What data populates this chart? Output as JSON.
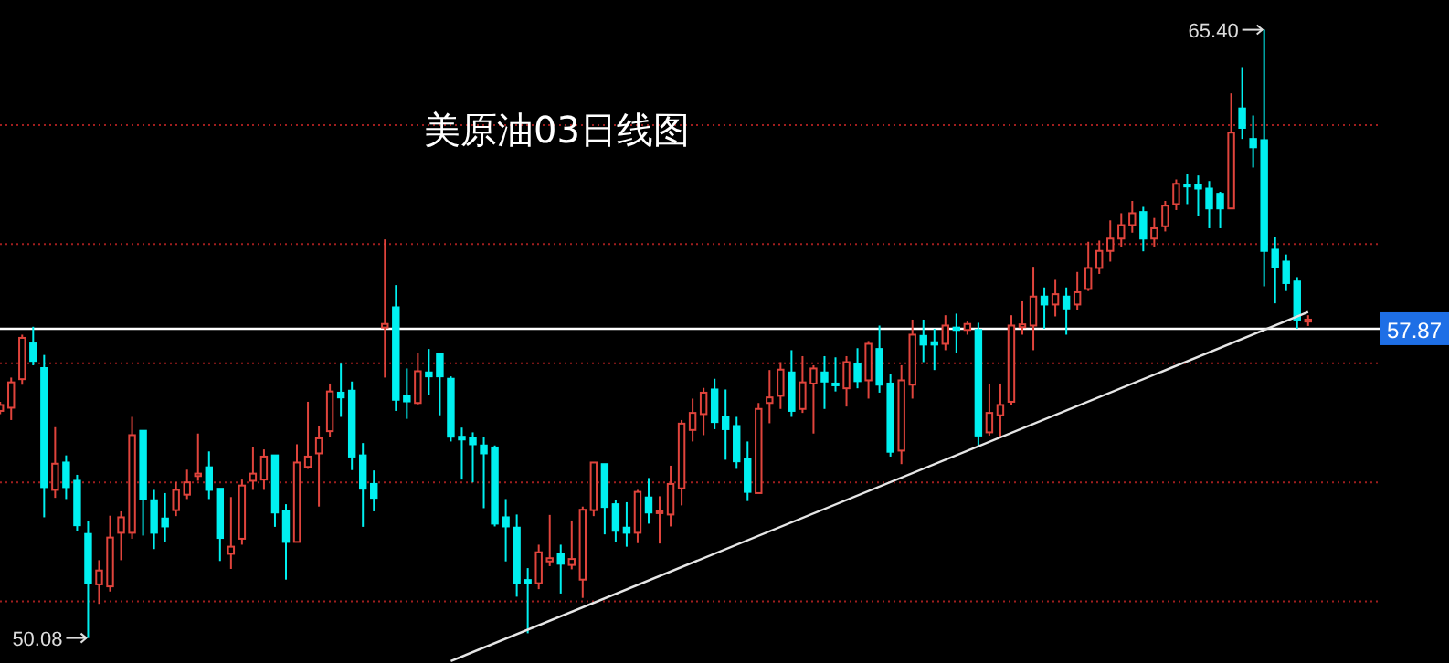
{
  "chart_data": {
    "type": "candlestick",
    "title": "美原油03日线图",
    "categories": [
      null,
      null,
      null,
      null,
      null,
      null,
      null,
      null,
      null,
      null,
      null,
      null,
      null,
      null,
      null,
      null,
      null,
      null,
      null,
      null,
      null,
      null,
      null,
      null,
      null,
      null,
      null,
      null,
      null,
      null,
      null,
      null,
      null,
      null,
      null,
      null,
      null,
      null,
      null,
      null,
      null,
      null,
      null,
      null,
      null,
      null,
      null,
      null,
      null,
      null,
      null,
      null,
      null,
      null,
      null,
      null,
      null,
      null,
      null,
      null,
      null,
      null,
      null,
      null,
      null,
      null,
      null,
      null,
      null,
      null,
      null,
      null,
      null,
      null,
      null,
      null,
      null,
      null,
      null,
      null,
      null,
      null,
      null,
      null,
      null,
      null,
      null,
      null,
      null,
      null,
      null,
      null,
      null,
      null,
      null,
      null,
      null,
      null,
      null,
      null,
      null,
      null,
      null,
      null,
      null,
      null,
      null,
      null,
      null,
      null,
      null,
      null,
      null,
      null,
      null,
      null,
      null,
      null,
      null,
      null
    ],
    "colors": [
      "#e0443c",
      "#e0443c",
      "#e0443c",
      "#00f0f0",
      "#00f0f0",
      "#e0443c",
      "#00f0f0",
      "#00f0f0",
      "#00f0f0",
      "#e0443c",
      "#e0443c",
      "#e0443c",
      "#e0443c",
      "#00f0f0",
      "#00f0f0",
      "#00f0f0",
      "#e0443c",
      "#e0443c",
      "#e0443c",
      "#00f0f0",
      "#00f0f0",
      "#e0443c",
      "#e0443c",
      "#e0443c",
      "#e0443c",
      "#00f0f0",
      "#00f0f0",
      "#e0443c",
      "#e0443c",
      "#e0443c",
      "#e0443c",
      "#00f0f0",
      "#00f0f0",
      "#00f0f0",
      "#00f0f0",
      "#e0443c",
      "#00f0f0",
      "#00f0f0",
      "#e0443c",
      "#00f0f0",
      "#00f0f0",
      "#00f0f0",
      "#00f0f0",
      "#00f0f0",
      "#00f0f0",
      "#00f0f0",
      "#00f0f0",
      "#00f0f0",
      "#00f0f0",
      "#e0443c",
      "#e0443c",
      "#00f0f0",
      "#e0443c",
      "#e0443c",
      "#e0443c",
      "#00f0f0",
      "#00f0f0",
      "#00f0f0",
      "#e0443c",
      "#00f0f0",
      "#e0443c",
      "#e0443c",
      "#e0443c",
      "#e0443c",
      "#e0443c",
      "#00f0f0",
      "#00f0f0",
      "#00f0f0",
      "#00f0f0",
      "#e0443c",
      "#e0443c",
      "#e0443c",
      "#00f0f0",
      "#e0443c",
      "#e0443c",
      "#00f0f0",
      "#00f0f0",
      "#e0443c",
      "#00f0f0",
      "#e0443c",
      "#00f0f0",
      "#00f0f0",
      "#e0443c",
      "#e0443c",
      "#00f0f0",
      "#00f0f0",
      "#e0443c",
      "#00f0f0",
      "#e0443c",
      "#00f0f0",
      "#e0443c",
      "#e0443c",
      "#e0443c",
      "#e0443c",
      "#e0443c",
      "#00f0f0",
      "#e0443c",
      "#00f0f0",
      "#e0443c",
      "#e0443c",
      "#e0443c",
      "#e0443c",
      "#e0443c",
      "#e0443c",
      "#00f0f0",
      "#e0443c",
      "#e0443c",
      "#e0443c",
      "#00f0f0",
      "#00f0f0",
      "#00f0f0",
      "#00f0f0",
      "#e0443c",
      "#00f0f0",
      "#00f0f0",
      "#00f0f0",
      "#00f0f0",
      "#00f0f0",
      "#00f0f0",
      "#e0443c"
    ],
    "ohlc": [
      [
        55.8,
        56.03,
        55.72,
        55.95
      ],
      [
        55.88,
        56.64,
        55.57,
        56.52
      ],
      [
        56.6,
        57.72,
        56.46,
        57.64
      ],
      [
        57.5,
        57.92,
        56.95,
        57.06
      ],
      [
        56.88,
        57.21,
        53.12,
        53.88
      ],
      [
        53.81,
        55.39,
        53.61,
        54.47
      ],
      [
        54.5,
        54.68,
        53.58,
        53.88
      ],
      [
        54.04,
        54.19,
        52.77,
        52.92
      ],
      [
        52.7,
        53.02,
        50.08,
        51.46
      ],
      [
        51.43,
        52.04,
        50.94,
        51.78
      ],
      [
        51.38,
        53.16,
        51.25,
        52.61
      ],
      [
        52.73,
        53.27,
        52.04,
        53.12
      ],
      [
        52.73,
        55.65,
        52.58,
        55.19
      ],
      [
        55.3,
        55.3,
        52.66,
        53.58
      ],
      [
        53.55,
        53.81,
        52.32,
        52.73
      ],
      [
        53.09,
        53.73,
        52.5,
        52.89
      ],
      [
        53.3,
        54.01,
        53.15,
        53.81
      ],
      [
        53.69,
        54.32,
        53.58,
        54.0
      ],
      [
        54.16,
        55.23,
        54.04,
        54.22
      ],
      [
        54.38,
        54.78,
        53.58,
        53.81
      ],
      [
        53.84,
        53.84,
        52.02,
        52.6
      ],
      [
        52.2,
        53.63,
        51.82,
        52.38
      ],
      [
        52.58,
        54.07,
        52.43,
        53.92
      ],
      [
        54.04,
        54.88,
        53.81,
        54.22
      ],
      [
        54.07,
        54.83,
        53.81,
        54.65
      ],
      [
        54.68,
        54.68,
        52.88,
        53.24
      ],
      [
        53.27,
        53.45,
        51.55,
        52.5
      ],
      [
        52.5,
        54.96,
        52.5,
        54.5
      ],
      [
        54.39,
        56.03,
        54.34,
        54.65
      ],
      [
        54.73,
        55.42,
        53.39,
        55.11
      ],
      [
        55.29,
        56.49,
        55.14,
        56.29
      ],
      [
        56.26,
        56.99,
        55.65,
        56.14
      ],
      [
        56.31,
        56.54,
        54.31,
        54.65
      ],
      [
        54.68,
        54.99,
        52.88,
        53.84
      ],
      [
        53.96,
        54.3,
        53.27,
        53.61
      ],
      [
        57.9,
        60.12,
        56.64,
        57.99
      ],
      [
        58.41,
        58.97,
        55.8,
        56.08
      ],
      [
        56.17,
        56.87,
        55.6,
        56.04
      ],
      [
        56.0,
        57.26,
        55.95,
        56.8
      ],
      [
        56.77,
        57.36,
        56.21,
        56.67
      ],
      [
        57.23,
        57.23,
        55.69,
        56.67
      ],
      [
        56.61,
        56.67,
        55.03,
        55.15
      ],
      [
        55.15,
        55.38,
        54.07,
        55.08
      ],
      [
        55.11,
        55.26,
        54.0,
        54.96
      ],
      [
        54.93,
        55.15,
        53.35,
        54.73
      ],
      [
        54.88,
        54.93,
        52.89,
        52.96
      ],
      [
        53.12,
        53.58,
        52.01,
        52.89
      ],
      [
        52.86,
        53.19,
        51.12,
        51.46
      ],
      [
        51.54,
        51.84,
        50.2,
        51.46
      ],
      [
        51.46,
        52.43,
        51.31,
        52.24
      ],
      [
        52.01,
        53.18,
        51.89,
        52.09
      ],
      [
        52.2,
        52.43,
        51.2,
        51.95
      ],
      [
        51.92,
        53.04,
        51.81,
        52.07
      ],
      [
        51.55,
        53.39,
        51.09,
        53.31
      ],
      [
        53.3,
        54.5,
        53.15,
        54.5
      ],
      [
        54.46,
        54.46,
        52.69,
        53.38
      ],
      [
        53.45,
        53.55,
        52.5,
        52.78
      ],
      [
        52.86,
        53.5,
        52.38,
        52.73
      ],
      [
        52.73,
        53.81,
        52.47,
        53.76
      ],
      [
        53.62,
        54.11,
        52.96,
        53.24
      ],
      [
        53.27,
        53.65,
        52.46,
        53.27
      ],
      [
        53.19,
        54.42,
        52.89,
        53.96
      ],
      [
        53.85,
        55.57,
        53.42,
        55.48
      ],
      [
        55.32,
        56.11,
        55.03,
        55.75
      ],
      [
        55.72,
        56.38,
        55.19,
        56.26
      ],
      [
        56.34,
        56.61,
        55.34,
        55.52
      ],
      [
        55.65,
        56.34,
        54.57,
        55.34
      ],
      [
        55.42,
        55.65,
        54.34,
        54.53
      ],
      [
        54.6,
        55.03,
        53.53,
        53.76
      ],
      [
        53.73,
        56.0,
        53.73,
        55.85
      ],
      [
        56.0,
        56.83,
        55.49,
        56.14
      ],
      [
        56.18,
        57.03,
        55.85,
        56.84
      ],
      [
        56.77,
        57.33,
        55.65,
        55.8
      ],
      [
        55.85,
        57.18,
        55.75,
        56.52
      ],
      [
        56.49,
        56.95,
        55.23,
        56.87
      ],
      [
        56.77,
        57.18,
        55.85,
        56.54
      ],
      [
        56.49,
        57.15,
        56.29,
        56.47
      ],
      [
        56.37,
        57.18,
        55.91,
        57.03
      ],
      [
        56.98,
        57.38,
        56.37,
        56.55
      ],
      [
        56.57,
        57.56,
        56.11,
        57.49
      ],
      [
        57.36,
        57.95,
        56.26,
        56.46
      ],
      [
        56.49,
        56.72,
        54.65,
        54.77
      ],
      [
        54.8,
        56.95,
        54.46,
        56.57
      ],
      [
        56.46,
        58.1,
        56.11,
        57.72
      ],
      [
        57.69,
        58.1,
        57.03,
        57.47
      ],
      [
        57.53,
        57.87,
        56.83,
        57.47
      ],
      [
        57.49,
        58.21,
        57.33,
        57.95
      ],
      [
        57.9,
        58.25,
        57.26,
        57.84
      ],
      [
        57.84,
        58.05,
        57.72,
        57.99
      ],
      [
        57.84,
        58.02,
        54.88,
        55.18
      ],
      [
        55.26,
        56.49,
        55.18,
        55.75
      ],
      [
        55.69,
        56.49,
        55.11,
        55.95
      ],
      [
        56.03,
        58.21,
        55.95,
        57.95
      ],
      [
        57.91,
        58.56,
        57.72,
        57.98
      ],
      [
        57.95,
        59.43,
        57.33,
        58.68
      ],
      [
        58.68,
        58.91,
        57.87,
        58.48
      ],
      [
        58.48,
        59.1,
        58.18,
        58.74
      ],
      [
        58.68,
        58.91,
        57.72,
        58.38
      ],
      [
        58.48,
        59.3,
        58.33,
        58.79
      ],
      [
        58.87,
        60.06,
        58.82,
        59.4
      ],
      [
        59.4,
        60.09,
        59.25,
        59.83
      ],
      [
        59.83,
        60.6,
        59.56,
        60.14
      ],
      [
        60.14,
        60.78,
        59.94,
        60.48
      ],
      [
        60.48,
        61.09,
        60.29,
        60.78
      ],
      [
        60.81,
        60.94,
        59.82,
        60.14
      ],
      [
        60.14,
        60.66,
        59.94,
        60.4
      ],
      [
        60.45,
        61.09,
        60.32,
        60.97
      ],
      [
        61.01,
        61.63,
        60.86,
        61.52
      ],
      [
        61.5,
        61.78,
        61.01,
        61.46
      ],
      [
        61.5,
        61.73,
        60.71,
        61.4
      ],
      [
        61.4,
        61.59,
        60.4,
        60.9
      ],
      [
        61.27,
        61.32,
        60.4,
        60.9
      ],
      [
        60.9,
        63.8,
        60.9,
        62.81
      ],
      [
        63.42,
        64.46,
        62.65,
        62.93
      ],
      [
        62.65,
        63.24,
        61.93,
        62.44
      ],
      [
        62.62,
        65.4,
        58.94,
        59.83
      ],
      [
        59.86,
        60.17,
        58.51,
        59.43
      ],
      [
        59.56,
        59.74,
        58.82,
        59.02
      ],
      [
        59.06,
        59.17,
        57.87,
        58.1
      ],
      [
        58.05,
        58.21,
        57.94,
        58.1
      ]
    ],
    "series": [
      {
        "type": "line",
        "color": "#e6e6e6",
        "values": [
          null,
          null,
          null,
          null,
          null,
          null,
          null,
          null,
          null,
          null,
          null,
          null,
          null,
          null,
          null,
          null,
          null,
          null,
          null,
          null,
          null,
          null,
          null,
          null,
          null,
          null,
          null,
          null,
          null,
          null,
          null,
          null,
          null,
          null,
          null,
          null,
          null,
          null,
          null,
          null,
          null,
          49.5,
          null,
          null,
          null,
          null,
          null,
          null,
          null,
          null,
          null,
          null,
          null,
          null,
          null,
          null,
          null,
          null,
          null,
          null,
          null,
          null,
          null,
          null,
          null,
          null,
          null,
          null,
          null,
          null,
          null,
          null,
          null,
          null,
          null,
          null,
          null,
          null,
          null,
          null,
          null,
          null,
          null,
          null,
          null,
          null,
          null,
          null,
          null,
          null,
          null,
          null,
          null,
          null,
          null,
          null,
          null,
          null,
          null,
          null,
          null,
          null,
          null,
          null,
          null,
          null,
          null,
          null,
          null,
          null,
          null,
          null,
          null,
          null,
          null,
          null,
          null,
          null,
          null,
          58.29
        ]
      }
    ],
    "ylim": [
      49.45,
      66.15
    ],
    "yticks": [
      {
        "value": 51,
        "label": null
      },
      {
        "value": 54,
        "label": null
      },
      {
        "value": 57,
        "label": null
      },
      {
        "value": 60,
        "label": null
      },
      {
        "value": 63,
        "label": null
      }
    ],
    "grid": "y",
    "ref_lines": [
      {
        "axis": "y",
        "value": 57.87,
        "label": "57.87",
        "color": "#ffffff"
      }
    ],
    "annotations": [
      "65.40",
      "50.08"
    ]
  }
}
